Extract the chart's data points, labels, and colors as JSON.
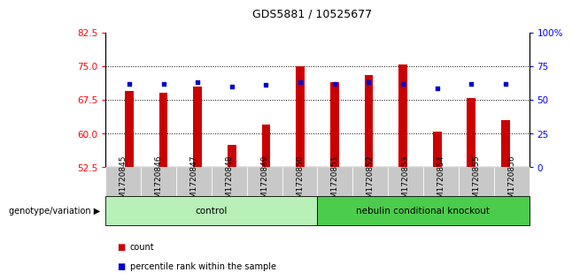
{
  "title": "GDS5881 / 10525677",
  "samples": [
    "GSM1720845",
    "GSM1720846",
    "GSM1720847",
    "GSM1720848",
    "GSM1720849",
    "GSM1720850",
    "GSM1720851",
    "GSM1720852",
    "GSM1720853",
    "GSM1720854",
    "GSM1720855",
    "GSM1720856"
  ],
  "bar_values": [
    69.5,
    69.2,
    70.5,
    57.5,
    62.0,
    75.0,
    71.5,
    73.0,
    75.5,
    60.5,
    68.0,
    63.0
  ],
  "dot_values_pct": [
    62,
    62,
    63,
    60,
    61,
    63,
    62,
    63,
    62,
    59,
    62,
    62
  ],
  "ylim_left": [
    52.5,
    82.5
  ],
  "yticks_left": [
    52.5,
    60.0,
    67.5,
    75.0,
    82.5
  ],
  "yticks_right": [
    0,
    25,
    50,
    75,
    100
  ],
  "ylim_right": [
    0,
    100
  ],
  "bar_color": "#cc0000",
  "dot_color": "#0000cc",
  "groups": [
    {
      "label": "control",
      "start": 0,
      "end": 6
    },
    {
      "label": "nebulin conditional knockout",
      "start": 6,
      "end": 12
    }
  ],
  "group_colors": [
    "#b8f0b8",
    "#4ccc4c"
  ],
  "group_label": "genotype/variation",
  "legend_items": [
    {
      "label": "count",
      "color": "#cc0000"
    },
    {
      "label": "percentile rank within the sample",
      "color": "#0000cc"
    }
  ],
  "grid_yticks": [
    60.0,
    67.5,
    75.0
  ],
  "xtick_bg": "#c8c8c8"
}
